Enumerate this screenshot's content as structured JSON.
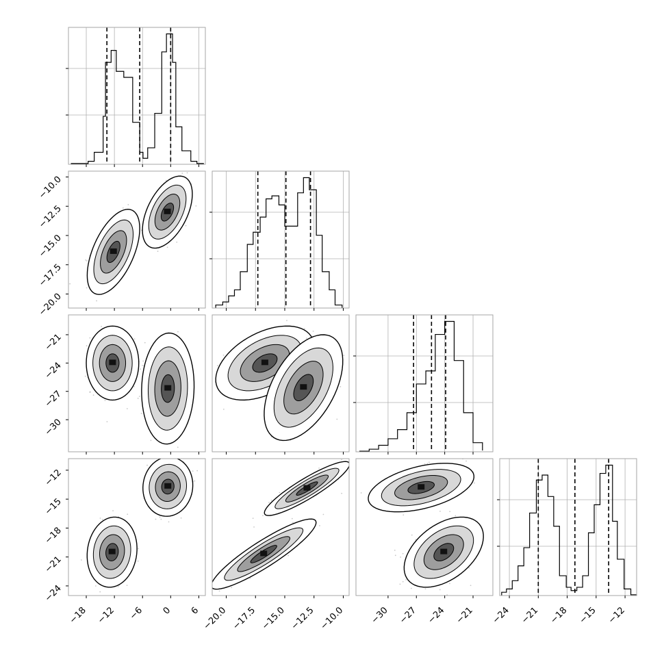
{
  "chart_data": {
    "type": "corner",
    "title": "",
    "variables": [
      {
        "ticks": [
          -18,
          -12,
          -6,
          0,
          6
        ],
        "tick_labels": [
          "−18",
          "−12",
          "−6",
          "0",
          "6"
        ],
        "range": [
          -21.8,
          7.4
        ]
      },
      {
        "ticks": [
          -20.0,
          -17.5,
          -15.0,
          -12.5,
          -10.0
        ],
        "tick_labels": [
          "−20.0",
          "−17.5",
          "−15.0",
          "−12.5",
          "−10.0"
        ],
        "range": [
          -21.2,
          -9.5
        ]
      },
      {
        "ticks": [
          -30,
          -27,
          -24,
          -21
        ],
        "tick_labels": [
          "−30",
          "−27",
          "−24",
          "−21"
        ],
        "range": [
          -33.4,
          -18.9
        ]
      },
      {
        "ticks": [
          -24,
          -21,
          -18,
          -15,
          -12
        ],
        "tick_labels": [
          "−24",
          "−21",
          "−18",
          "−15",
          "−12"
        ],
        "range": [
          -25.0,
          -10.8
        ]
      }
    ],
    "histograms": [
      {
        "edges": [
          -21.2,
          -17.6,
          -16.3,
          -14.4,
          -13.9,
          -12.7,
          -11.6,
          -10.0,
          -8.1,
          -6.6,
          -5.9,
          -4.9,
          -3.4,
          -1.9,
          -0.9,
          0.4,
          1.1,
          2.4,
          4.3,
          5.6,
          7.0
        ],
        "counts": [
          0.5,
          2,
          8,
          32,
          68,
          76,
          62,
          58,
          28,
          8,
          4,
          11,
          34,
          75,
          87,
          68,
          25,
          9,
          2,
          0.5
        ],
        "quantiles": [
          -13.6,
          -6.6,
          0.0
        ]
      },
      {
        "edges": [
          -20.9,
          -20.3,
          -19.8,
          -19.3,
          -18.8,
          -18.2,
          -17.7,
          -17.1,
          -16.6,
          -16.1,
          -15.5,
          -15.0,
          -14.4,
          -13.9,
          -13.4,
          -12.9,
          -12.3,
          -11.8,
          -11.2,
          -10.7,
          -10.1
        ],
        "counts": [
          1,
          2,
          4,
          6,
          12,
          21,
          25,
          30,
          36,
          37,
          34,
          27,
          27,
          38,
          43,
          39,
          24,
          12,
          6,
          1
        ],
        "quantiles": [
          -17.3,
          -14.9,
          -12.8
        ]
      },
      {
        "edges": [
          -33.0,
          -32.0,
          -31.0,
          -30.0,
          -29.0,
          -28.0,
          -27.0,
          -26.0,
          -25.0,
          -24.0,
          -23.0,
          -22.0,
          -21.0,
          -20.0
        ],
        "counts": [
          0.5,
          2,
          5,
          10,
          17,
          30,
          52,
          62,
          90,
          100,
          70,
          30,
          7,
          1
        ],
        "quantiles": [
          -27.3,
          -25.4,
          -23.9
        ]
      },
      {
        "edges": [
          -24.8,
          -24.3,
          -23.7,
          -23.1,
          -22.5,
          -21.9,
          -21.2,
          -20.6,
          -20.0,
          -19.4,
          -18.8,
          -18.1,
          -17.6,
          -17.0,
          -16.4,
          -15.8,
          -15.2,
          -14.6,
          -14.0,
          -13.3,
          -12.8,
          -12.1,
          -11.4,
          -10.8
        ],
        "counts": [
          2,
          4,
          9,
          18,
          29,
          50,
          70,
          73,
          60,
          42,
          12,
          5,
          3,
          5,
          12,
          38,
          55,
          74,
          79,
          45,
          22,
          4,
          0.5
        ],
        "quantiles": [
          -21.0,
          -17.2,
          -13.7
        ]
      }
    ],
    "pairs": [
      {
        "row": 1,
        "col": 0,
        "clusters": [
          {
            "mean": [
              -12.2,
              -16.4
            ],
            "sd": [
              2.0,
              1.3
            ],
            "corr": 0.55,
            "n": 260
          },
          {
            "mean": [
              -0.7,
              -13.0
            ],
            "sd": [
              1.9,
              1.1
            ],
            "corr": 0.5,
            "n": 260
          }
        ]
      },
      {
        "row": 2,
        "col": 0,
        "clusters": [
          {
            "mean": [
              -12.4,
              -24.0
            ],
            "sd": [
              2.0,
              1.4
            ],
            "corr": 0.0,
            "n": 260
          },
          {
            "mean": [
              -0.6,
              -26.7
            ],
            "sd": [
              2.0,
              2.1
            ],
            "corr": 0.05,
            "n": 260
          }
        ]
      },
      {
        "row": 2,
        "col": 1,
        "clusters": [
          {
            "mean": [
              -16.7,
              -24.0
            ],
            "sd": [
              1.5,
              1.4
            ],
            "corr": 0.45,
            "n": 260
          },
          {
            "mean": [
              -13.4,
              -26.6
            ],
            "sd": [
              1.2,
              2.0
            ],
            "corr": 0.5,
            "n": 260
          }
        ]
      },
      {
        "row": 2,
        "col": 2,
        "clusters": [
          {
            "mean": [
              -25.4,
              -25.4
            ],
            "sd": [
              1.8,
              1.8
            ],
            "corr": 0.0,
            "n": 0
          }
        ]
      },
      {
        "row": 3,
        "col": 0,
        "clusters": [
          {
            "mean": [
              -12.5,
              -20.5
            ],
            "sd": [
              1.9,
              1.3
            ],
            "corr": 0.1,
            "n": 260
          },
          {
            "mean": [
              -0.6,
              -13.7
            ],
            "sd": [
              1.9,
              1.1
            ],
            "corr": 0.05,
            "n": 260
          }
        ]
      },
      {
        "row": 3,
        "col": 1,
        "clusters": [
          {
            "mean": [
              -16.8,
              -20.7
            ],
            "sd": [
              1.6,
              1.3
            ],
            "corr": 0.9,
            "n": 260
          },
          {
            "mean": [
              -13.1,
              -13.9
            ],
            "sd": [
              1.3,
              1.0
            ],
            "corr": 0.9,
            "n": 260
          }
        ]
      },
      {
        "row": 3,
        "col": 2,
        "clusters": [
          {
            "mean": [
              -26.5,
              -13.8
            ],
            "sd": [
              2.0,
              0.9
            ],
            "corr": 0.45,
            "n": 260
          },
          {
            "mean": [
              -24.1,
              -20.5
            ],
            "sd": [
              1.5,
              1.3
            ],
            "corr": 0.45,
            "n": 260
          }
        ]
      }
    ],
    "contour_levels": [
      0.5,
      1.0,
      1.5,
      2.0
    ],
    "colors": {
      "ink": "#000000",
      "grid": "#b0b0b0",
      "points": "#9a9a9a",
      "frame": "#a6a6a6"
    }
  }
}
